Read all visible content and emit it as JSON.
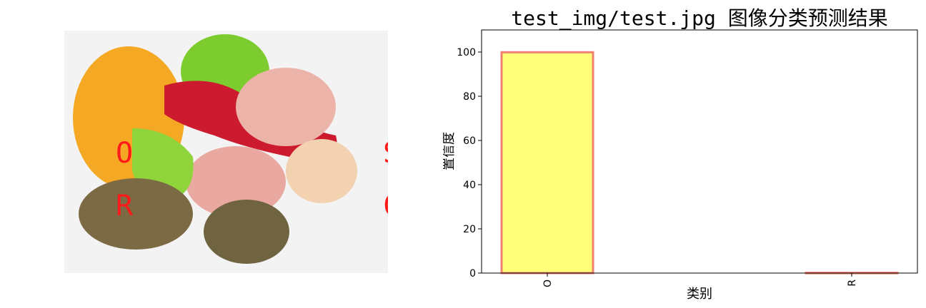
{
  "photo": {
    "overlay_labels": [
      "O",
      "R"
    ],
    "right_edge_fragments": [
      "S",
      "C"
    ],
    "label_color": "#ff1a1a"
  },
  "chart_data": {
    "type": "bar",
    "title": "test_img/test.jpg 图像分类预测结果",
    "xlabel": "类别",
    "ylabel": "置信度",
    "categories": [
      "O",
      "R"
    ],
    "values": [
      99.9,
      0.1
    ],
    "ylim": [
      0,
      110
    ],
    "yticks": [
      0,
      20,
      40,
      60,
      80,
      100
    ],
    "grid": false,
    "bar_fill": "#ffff7a",
    "bar_edge": "#f08070"
  }
}
